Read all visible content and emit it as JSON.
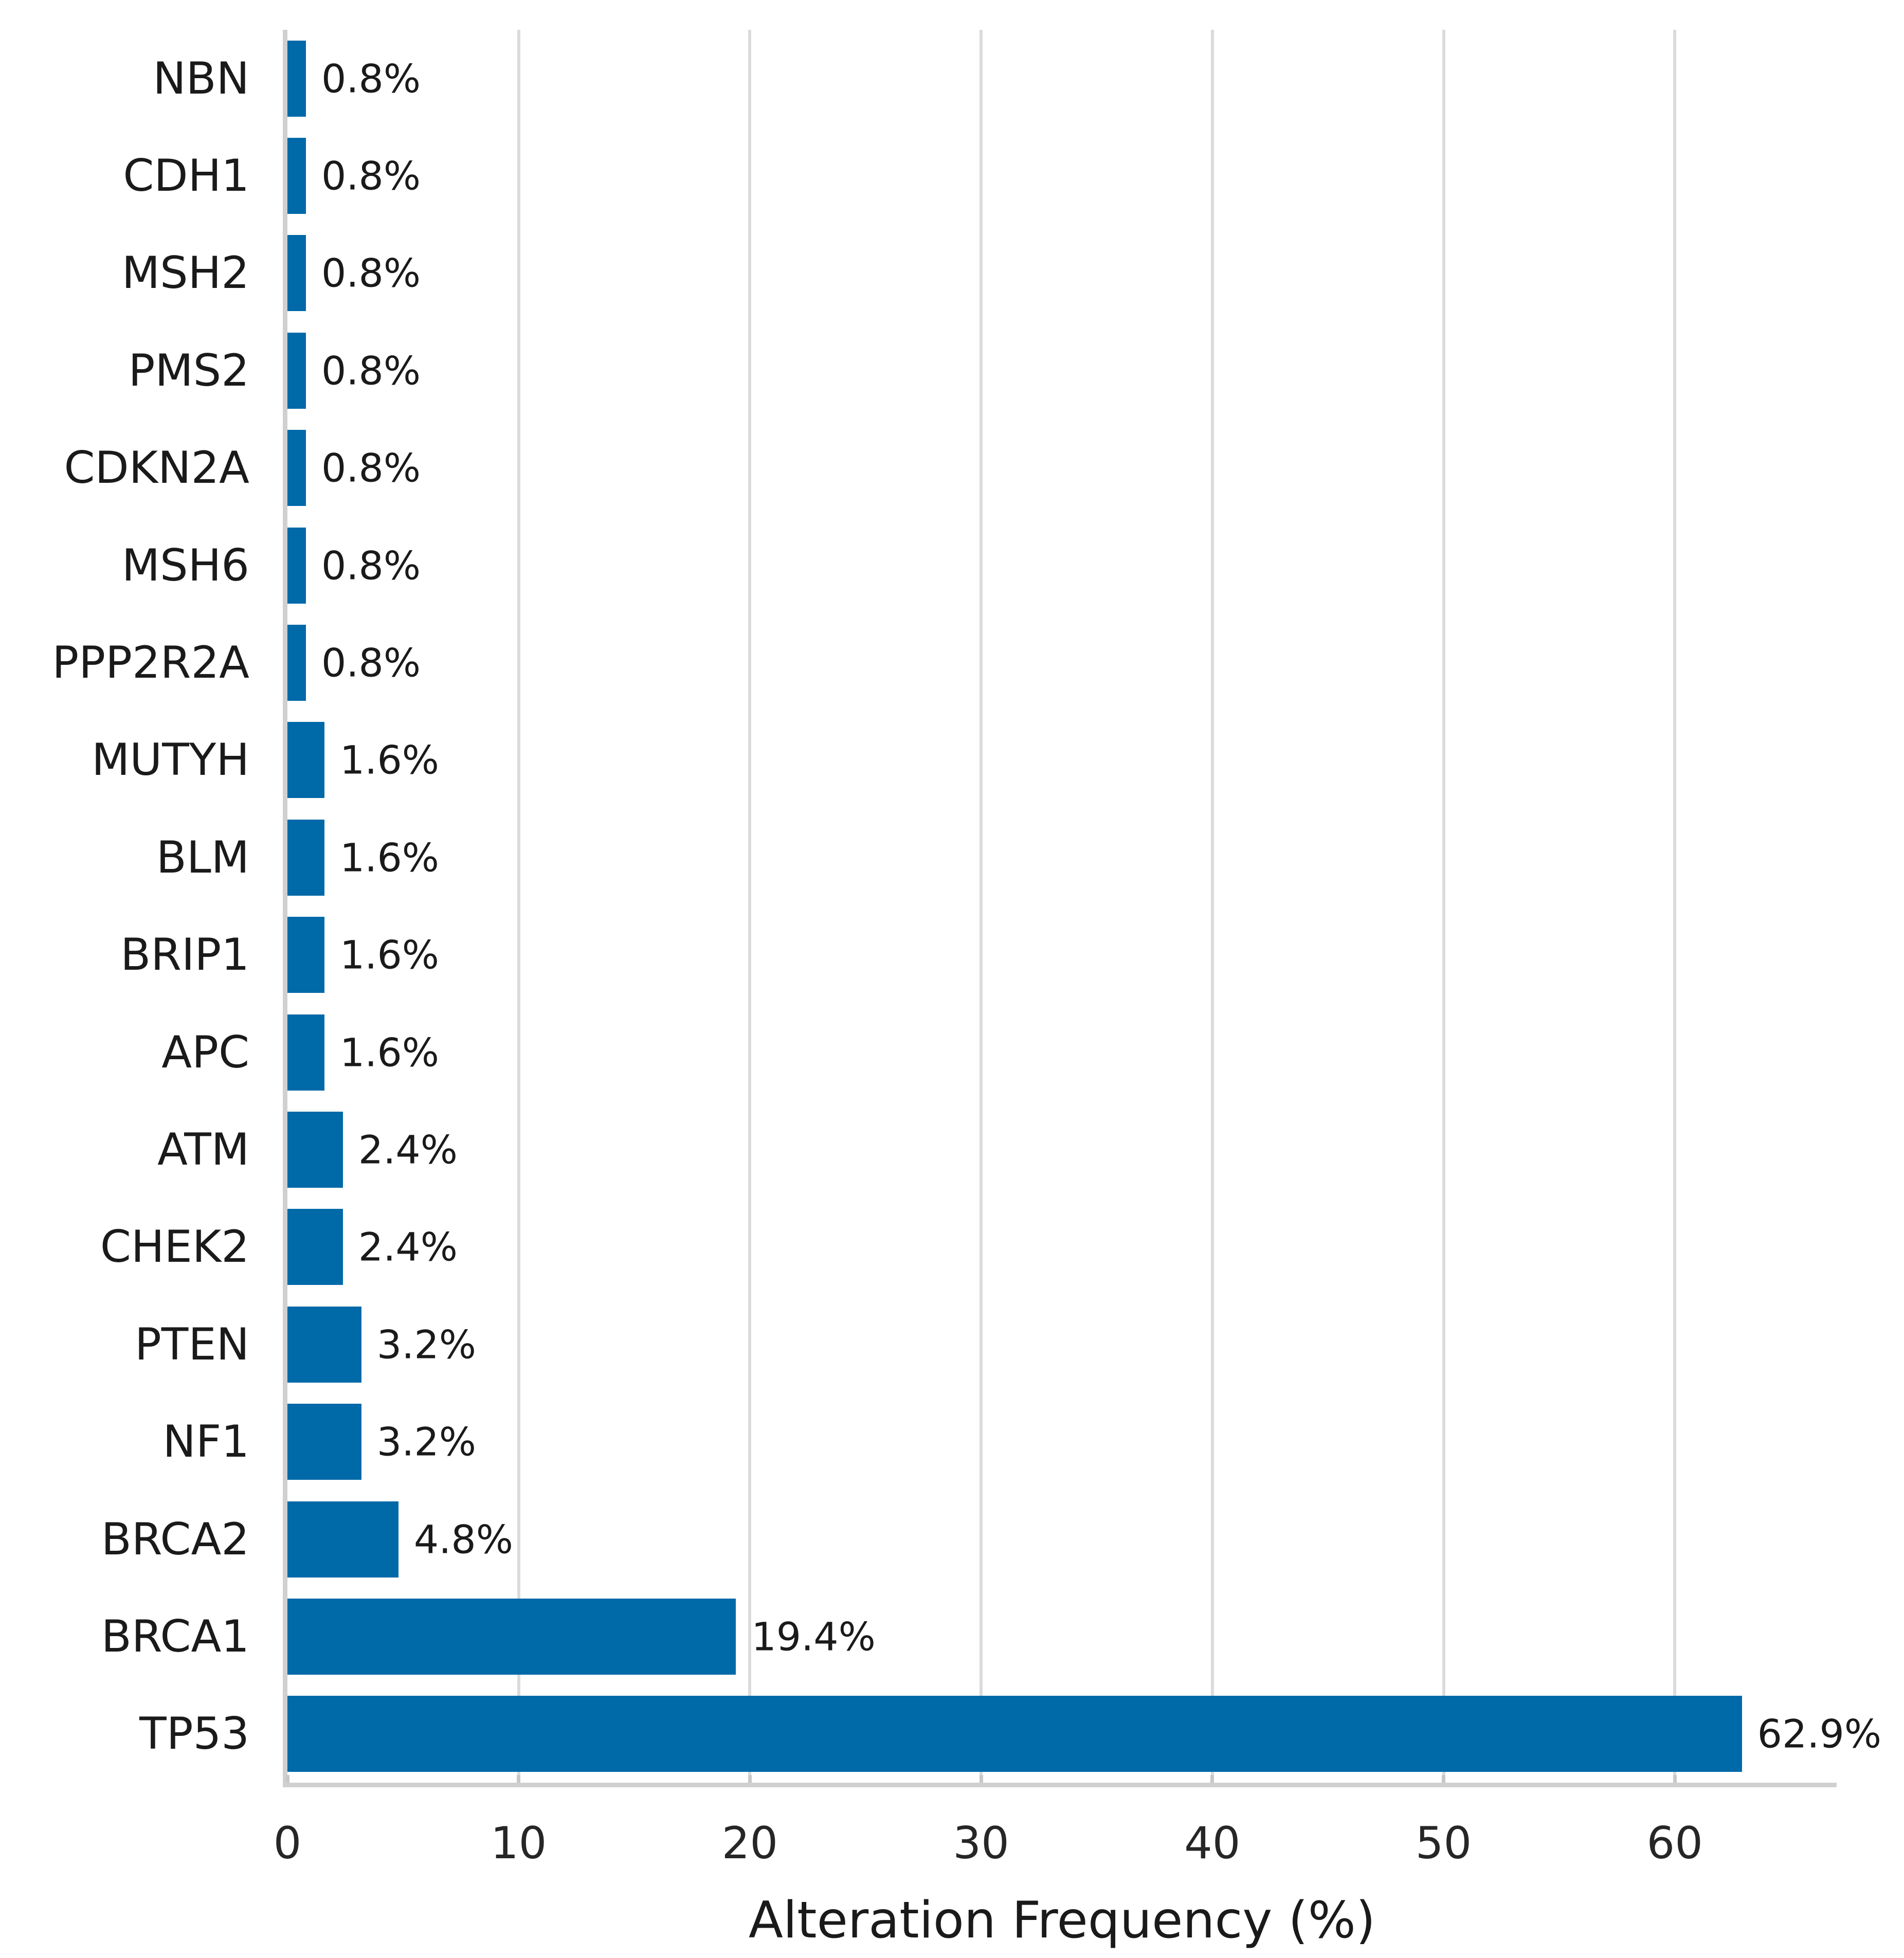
{
  "chart_data": {
    "type": "bar",
    "orientation": "horizontal",
    "title": "",
    "xlabel": "Alteration Frequency (%)",
    "ylabel": "",
    "categories": [
      "NBN",
      "CDH1",
      "MSH2",
      "PMS2",
      "CDKN2A",
      "MSH6",
      "PPP2R2A",
      "MUTYH",
      "BLM",
      "BRIP1",
      "APC",
      "ATM",
      "CHEK2",
      "PTEN",
      "NF1",
      "BRCA2",
      "BRCA1",
      "TP53"
    ],
    "values": [
      0.8,
      0.8,
      0.8,
      0.8,
      0.8,
      0.8,
      0.8,
      1.6,
      1.6,
      1.6,
      1.6,
      2.4,
      2.4,
      3.2,
      3.2,
      4.8,
      19.4,
      62.9
    ],
    "value_labels": [
      "0.8%",
      "0.8%",
      "0.8%",
      "0.8%",
      "0.8%",
      "0.8%",
      "0.8%",
      "1.6%",
      "1.6%",
      "1.6%",
      "1.6%",
      "2.4%",
      "2.4%",
      "3.2%",
      "3.2%",
      "4.8%",
      "19.4%",
      "62.9%"
    ],
    "xticks": [
      0,
      10,
      20,
      30,
      40,
      50,
      60
    ],
    "xtick_labels": [
      "0",
      "10",
      "20",
      "30",
      "40",
      "50",
      "60"
    ],
    "xlim": [
      0,
      67
    ],
    "grid": "vertical",
    "legend": "none",
    "bar_color": "#0069a8",
    "gridline_color": "#dbdbdb",
    "spine_color": "#d0d0d0",
    "tick_color": "#c8c8c8",
    "text_color": "#1a1a1a"
  }
}
